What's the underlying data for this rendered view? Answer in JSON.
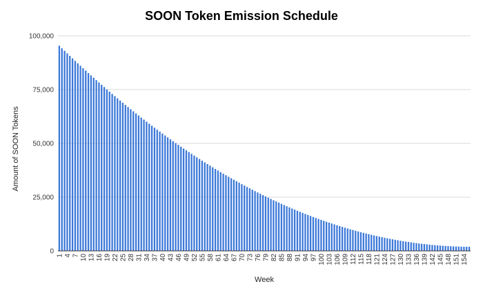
{
  "chart_data": {
    "type": "bar",
    "title": "SOON Token Emission Schedule",
    "xlabel": "Week",
    "ylabel": "Amount of SOON Tokens",
    "ylim": [
      0,
      100000
    ],
    "yticks": [
      "0",
      "25,000",
      "50,000",
      "75,000",
      "100,000"
    ],
    "ytick_values": [
      0,
      25000,
      50000,
      75000,
      100000
    ],
    "grid": true,
    "legend": "none",
    "bar_color": "#3b78d8",
    "categories": [
      1,
      2,
      3,
      4,
      5,
      6,
      7,
      8,
      9,
      10,
      11,
      12,
      13,
      14,
      15,
      16,
      17,
      18,
      19,
      20,
      21,
      22,
      23,
      24,
      25,
      26,
      27,
      28,
      29,
      30,
      31,
      32,
      33,
      34,
      35,
      36,
      37,
      38,
      39,
      40,
      41,
      42,
      43,
      44,
      45,
      46,
      47,
      48,
      49,
      50,
      51,
      52,
      53,
      54,
      55,
      56,
      57,
      58,
      59,
      60,
      61,
      62,
      63,
      64,
      65,
      66,
      67,
      68,
      69,
      70,
      71,
      72,
      73,
      74,
      75,
      76,
      77,
      78,
      79,
      80,
      81,
      82,
      83,
      84,
      85,
      86,
      87,
      88,
      89,
      90,
      91,
      92,
      93,
      94,
      95,
      96,
      97,
      98,
      99,
      100,
      101,
      102,
      103,
      104,
      105,
      106,
      107,
      108,
      109,
      110,
      111,
      112,
      113,
      114,
      115,
      116,
      117,
      118,
      119,
      120,
      121,
      122,
      123,
      124,
      125,
      126,
      127,
      128,
      129,
      130,
      131,
      132,
      133,
      134,
      135,
      136,
      137,
      138,
      139,
      140,
      141,
      142,
      143,
      144,
      145,
      146,
      147,
      148,
      149,
      150,
      151,
      152,
      153,
      154,
      155,
      156
    ],
    "xtick_labels": [
      "1",
      "4",
      "7",
      "10",
      "13",
      "16",
      "19",
      "22",
      "25",
      "28",
      "31",
      "34",
      "37",
      "40",
      "43",
      "46",
      "49",
      "52",
      "55",
      "58",
      "61",
      "64",
      "67",
      "70",
      "73",
      "76",
      "79",
      "82",
      "85",
      "88",
      "91",
      "94",
      "97",
      "100",
      "103",
      "106",
      "109",
      "112",
      "115",
      "118",
      "121",
      "124",
      "127",
      "130",
      "133",
      "136",
      "139",
      "142",
      "145",
      "148",
      "151",
      "154"
    ],
    "values": [
      95411,
      94218,
      93033,
      91855,
      90685,
      89523,
      88368,
      87221,
      86082,
      84950,
      83826,
      82710,
      81601,
      80500,
      79406,
      78321,
      77242,
      76172,
      75109,
      74054,
      73006,
      71966,
      70934,
      69909,
      68892,
      67882,
      66881,
      65886,
      64900,
      63921,
      62950,
      61986,
      61030,
      60082,
      59141,
      58208,
      57283,
      56365,
      55455,
      54553,
      53658,
      52771,
      51891,
      51019,
      50155,
      49299,
      48450,
      47609,
      46775,
      45949,
      45131,
      44320,
      43517,
      42722,
      41934,
      41154,
      40382,
      39617,
      38860,
      38111,
      37369,
      36635,
      35909,
      35190,
      34479,
      33776,
      33080,
      32392,
      31712,
      31039,
      30374,
      29717,
      29067,
      28425,
      27790,
      27164,
      26545,
      25933,
      25330,
      24734,
      24145,
      23565,
      22992,
      22427,
      21869,
      21319,
      20777,
      20242,
      19715,
      19196,
      18684,
      18180,
      17684,
      17196,
      16715,
      16242,
      15776,
      15318,
      14868,
      14426,
      13991,
      13564,
      13145,
      12733,
      12329,
      11933,
      11544,
      11163,
      10790,
      10425,
      10067,
      9716,
      9374,
      9039,
      8712,
      8392,
      8081,
      7777,
      7480,
      7192,
      6911,
      6637,
      6372,
      6114,
      5864,
      5621,
      5386,
      5159,
      4939,
      4727,
      4523,
      4327,
      4138,
      3957,
      3783,
      3617,
      3459,
      3309,
      3166,
      3031,
      2903,
      2784,
      2671,
      2567,
      2470,
      2381,
      2300,
      2226,
      2160,
      2102,
      2051,
      2008,
      1973,
      1946,
      1926,
      1914
    ]
  }
}
